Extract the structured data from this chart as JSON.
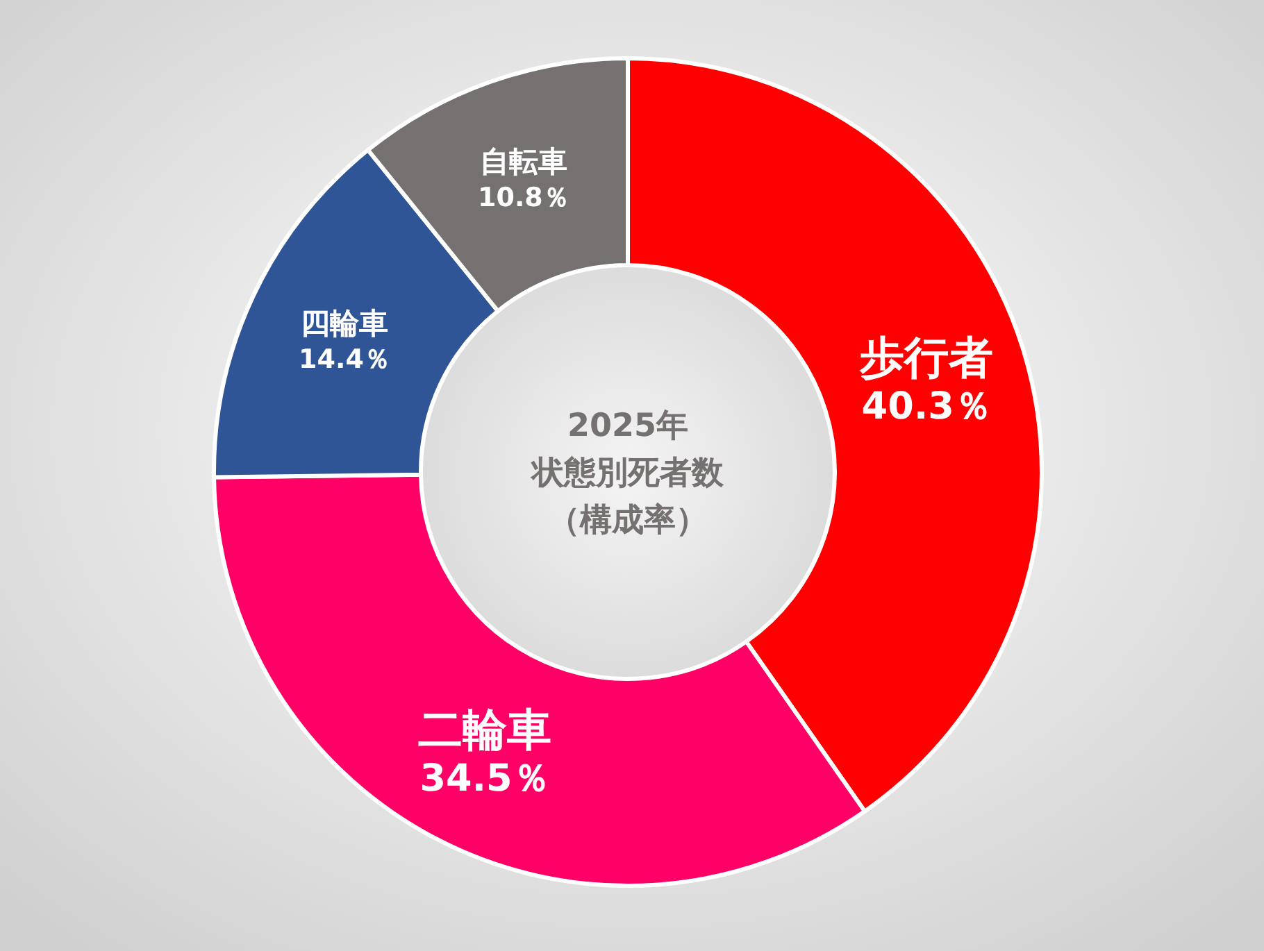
{
  "chart_data": {
    "type": "donut",
    "title": "2025年状態別死者数",
    "subtitle": "（構成率）",
    "categories": [
      "歩行者",
      "二輪車",
      "四輪車",
      "自転車"
    ],
    "values": [
      40.3,
      34.5,
      14.4,
      10.8
    ],
    "value_labels": [
      "40.3％",
      "34.5％",
      "14.4％",
      "10.8％"
    ],
    "colors": [
      "#ff0000",
      "#ff0066",
      "#2f5597",
      "#767171"
    ]
  }
}
